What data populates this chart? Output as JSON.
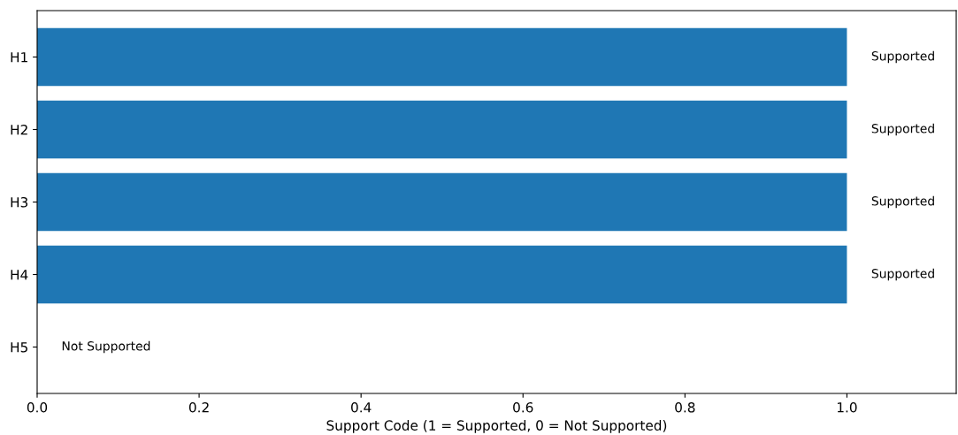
{
  "chart_data": {
    "type": "bar",
    "orientation": "horizontal",
    "categories": [
      "H1",
      "H2",
      "H3",
      "H4",
      "H5"
    ],
    "values": [
      1,
      1,
      1,
      1,
      0
    ],
    "value_labels": [
      "Supported",
      "Supported",
      "Supported",
      "Supported",
      "Not Supported"
    ],
    "color": "#1f77b4",
    "xlabel": "Support Code (1 = Supported, 0 = Not Supported)",
    "xlim": [
      0,
      1.135
    ],
    "xticks": [
      {
        "value": 0,
        "label": "0.0"
      },
      0.2,
      0.4,
      0.6,
      0.8,
      {
        "value": 1,
        "label": "1.0"
      }
    ],
    "grid": false,
    "legend": false
  }
}
